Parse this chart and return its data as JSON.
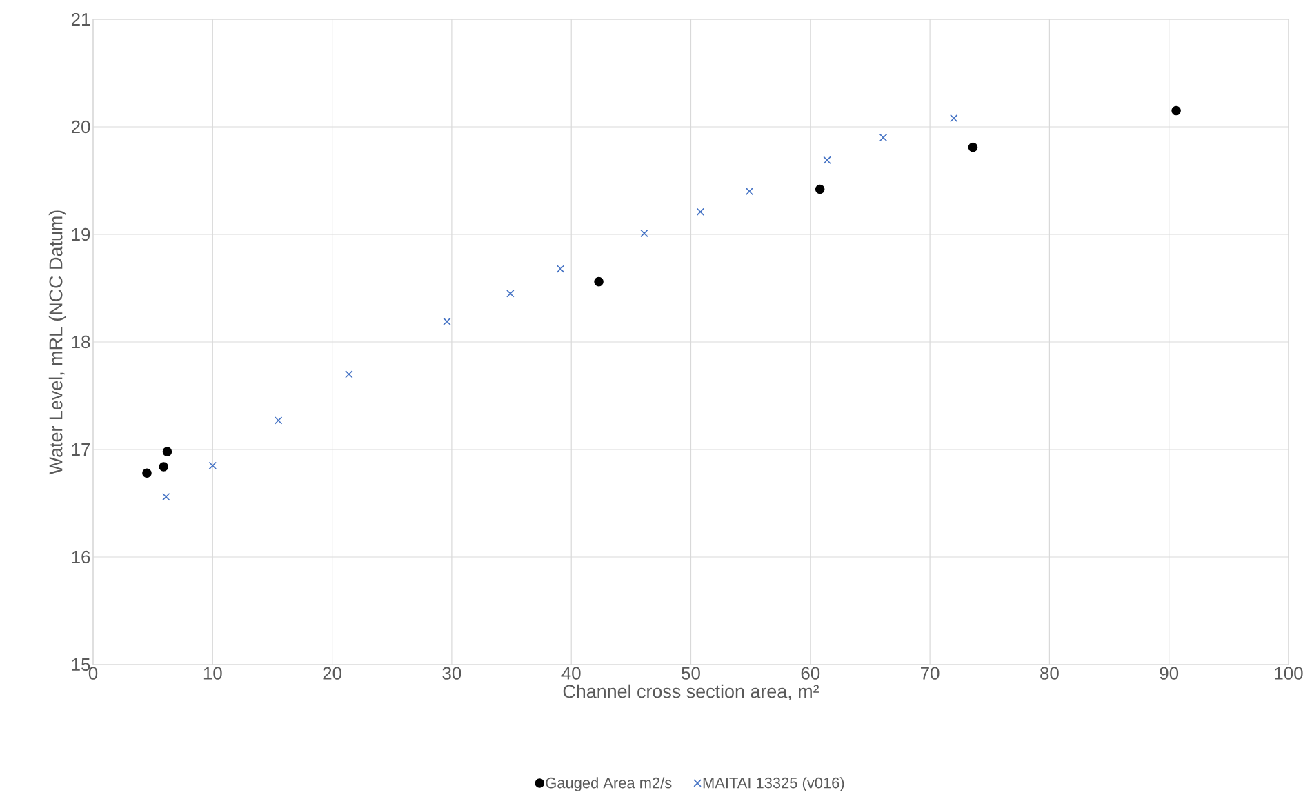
{
  "chart_data": {
    "type": "scatter",
    "xlabel": "Channel cross section area, m²",
    "ylabel": "Water Level, mRL (NCC Datum)",
    "xlim": [
      0,
      100
    ],
    "ylim": [
      15,
      21
    ],
    "xticks": [
      0,
      10,
      20,
      30,
      40,
      50,
      60,
      70,
      80,
      90,
      100
    ],
    "yticks": [
      15,
      16,
      17,
      18,
      19,
      20,
      21
    ],
    "grid": true,
    "legend": "bottom",
    "series": [
      {
        "name": "Gauged Area m2/s",
        "color": "#000000",
        "marker": "circle",
        "x": [
          4.5,
          5.9,
          6.2,
          42.3,
          60.8,
          73.6,
          90.6
        ],
        "values": [
          16.78,
          16.84,
          16.98,
          18.56,
          19.42,
          19.81,
          20.15
        ]
      },
      {
        "name": "MAITAI 13325 (v016)",
        "color": "#4472c4",
        "marker": "cross",
        "x": [
          6.1,
          10,
          15.5,
          21.4,
          29.6,
          34.9,
          39.1,
          46.1,
          50.8,
          54.9,
          61.4,
          66.1,
          72
        ],
        "values": [
          16.56,
          16.85,
          17.27,
          17.7,
          18.19,
          18.45,
          18.68,
          19.01,
          19.21,
          19.4,
          19.69,
          19.9,
          20.08
        ]
      }
    ]
  }
}
